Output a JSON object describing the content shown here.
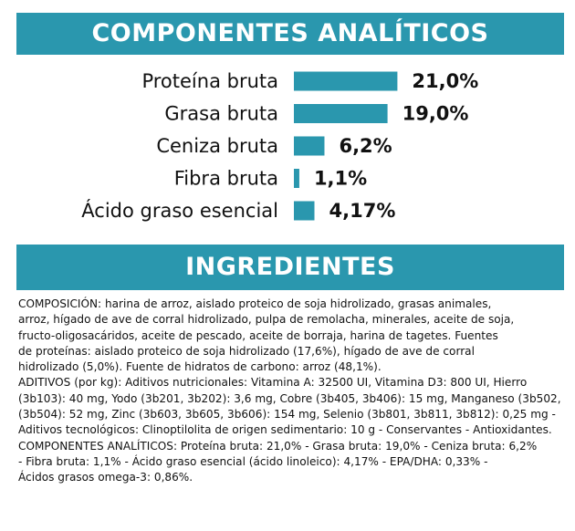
{
  "headers": {
    "analytic": "COMPONENTES ANALÍTICOS",
    "ingredients": "INGREDIENTES"
  },
  "chart_data": {
    "type": "bar",
    "orientation": "horizontal",
    "title": "COMPONENTES ANALÍTICOS",
    "categories": [
      "Proteína bruta",
      "Grasa bruta",
      "Ceniza bruta",
      "Fibra bruta",
      "Ácido graso esencial"
    ],
    "values": [
      21.0,
      19.0,
      6.2,
      1.1,
      4.17
    ],
    "value_labels": [
      "21,0%",
      "19,0%",
      "6,2%",
      "1,1%",
      "4,17%"
    ],
    "unit": "%",
    "bar_color": "#2a97ae",
    "grid": false,
    "legend": "none"
  },
  "ingredients_lines": [
    "COMPOSICIÓN: harina de arroz, aislado proteico de soja hidrolizado, grasas animales,",
    "arroz, hígado de ave de corral hidrolizado, pulpa de remolacha, minerales, aceite de soja,",
    "fructo-oligosacáridos, aceite de pescado, aceite de borraja, harina de tagetes. Fuentes",
    "de proteínas: aislado proteico de soja hidrolizado (17,6%), hígado de ave de corral",
    "hidrolizado (5,0%). Fuente de hidratos de carbono: arroz (48,1%).",
    "ADITIVOS (por kg): Aditivos nutricionales: Vitamina A: 32500 UI, Vitamina D3: 800 UI, Hierro",
    "(3b103): 40 mg, Yodo (3b201, 3b202): 3,6 mg, Cobre (3b405, 3b406): 15 mg, Manganeso (3b502,",
    "(3b504): 52 mg, Zinc (3b603, 3b605, 3b606): 154 mg, Selenio (3b801, 3b811, 3b812): 0,25 mg -",
    "Aditivos tecnológicos: Clinoptilolita de origen sedimentario: 10 g - Conservantes - Antioxidantes.",
    "COMPONENTES ANALÍTICOS: Proteína bruta: 21,0% - Grasa bruta: 19,0% - Ceniza bruta: 6,2%",
    "- Fibra bruta: 1,1% - Ácido graso esencial (ácido linoleico): 4,17% - EPA/DHA: 0,33% -",
    "Ácidos grasos omega-3: 0,86%."
  ]
}
